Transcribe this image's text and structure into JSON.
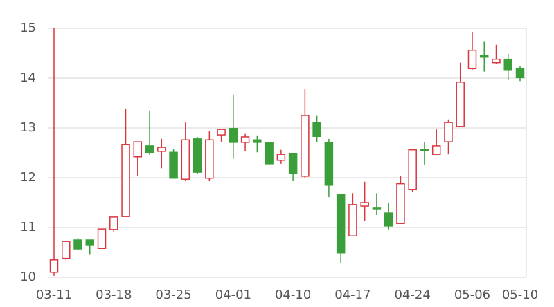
{
  "chart_data": {
    "type": "candlestick",
    "categories": [
      "03-11",
      null,
      null,
      null,
      null,
      "03-18",
      null,
      null,
      null,
      null,
      "03-25",
      null,
      null,
      null,
      null,
      "04-01",
      null,
      null,
      null,
      null,
      "04-10",
      null,
      null,
      null,
      null,
      "04-17",
      null,
      null,
      null,
      null,
      "04-24",
      null,
      null,
      null,
      null,
      "05-06",
      null,
      null,
      null,
      "05-10"
    ],
    "open": [
      10.1,
      10.38,
      10.75,
      10.75,
      10.58,
      10.96,
      11.22,
      12.42,
      12.64,
      12.53,
      12.51,
      11.97,
      12.78,
      11.99,
      12.86,
      12.99,
      12.71,
      12.76,
      12.71,
      12.35,
      12.49,
      12.03,
      13.11,
      12.71,
      11.67,
      10.83,
      11.43,
      11.39,
      11.29,
      11.08,
      11.76,
      12.56,
      12.47,
      12.72,
      13.03,
      14.19,
      14.46,
      14.31,
      14.38,
      14.19
    ],
    "high": [
      15.0,
      10.72,
      10.79,
      10.75,
      10.97,
      11.21,
      13.39,
      12.72,
      13.35,
      12.78,
      12.58,
      13.11,
      12.82,
      12.93,
      12.97,
      13.67,
      12.88,
      12.85,
      12.71,
      12.56,
      12.49,
      13.79,
      13.24,
      12.78,
      11.67,
      11.69,
      11.92,
      11.69,
      11.49,
      12.03,
      12.56,
      12.72,
      12.97,
      13.17,
      14.31,
      14.92,
      14.73,
      14.67,
      14.49,
      14.24
    ],
    "low": [
      10.03,
      10.35,
      10.54,
      10.45,
      10.58,
      10.9,
      11.22,
      12.03,
      12.46,
      12.19,
      11.99,
      11.93,
      12.07,
      11.93,
      12.71,
      12.38,
      12.54,
      12.51,
      12.28,
      12.28,
      11.93,
      12.0,
      12.72,
      11.61,
      10.28,
      10.83,
      11.13,
      11.25,
      10.96,
      11.08,
      11.72,
      12.25,
      12.47,
      12.47,
      13.03,
      14.17,
      14.13,
      14.29,
      13.96,
      13.94
    ],
    "close": [
      10.35,
      10.72,
      10.57,
      10.64,
      10.97,
      11.21,
      12.67,
      12.72,
      12.51,
      12.61,
      11.99,
      12.76,
      12.11,
      12.76,
      12.97,
      12.71,
      12.82,
      12.71,
      12.28,
      12.47,
      12.08,
      13.25,
      12.83,
      11.85,
      10.49,
      11.46,
      11.5,
      11.38,
      11.03,
      11.88,
      12.56,
      12.54,
      12.64,
      13.11,
      13.92,
      14.56,
      14.42,
      14.38,
      14.17,
      14.01
    ],
    "up_color": "#d9363e",
    "down_color": "#3a9f3a",
    "ylim": [
      10,
      15
    ],
    "yticks": [
      10,
      11,
      12,
      13,
      14,
      15
    ],
    "grid": true
  }
}
